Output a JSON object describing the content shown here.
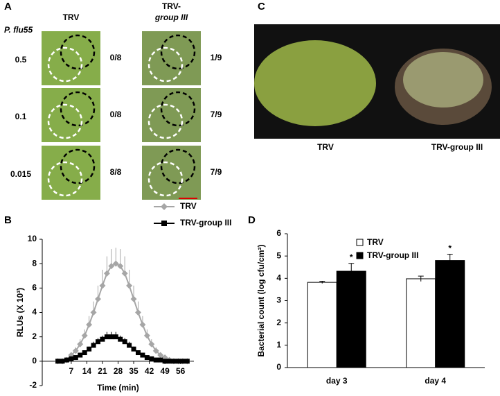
{
  "panel_a": {
    "label": "A",
    "col_headers": [
      [
        "TRV"
      ],
      [
        "TRV-",
        "group III"
      ]
    ],
    "row_header": "P. flu55",
    "rows": [
      "0.5",
      "0.1",
      "0.015"
    ],
    "scores": [
      [
        "0/8",
        "1/9"
      ],
      [
        "0/8",
        "7/9"
      ],
      [
        "8/8",
        "7/9"
      ]
    ]
  },
  "panel_c": {
    "label": "C",
    "captions": [
      "TRV",
      "TRV-group III"
    ]
  },
  "chart_data": [
    {
      "type": "line",
      "panel": "B",
      "x_label": "Time (min)",
      "y_label": "RLUs (X 10³)",
      "x": [
        1,
        3,
        5,
        7,
        9,
        11,
        13,
        15,
        17,
        19,
        21,
        23,
        25,
        27,
        29,
        31,
        33,
        35,
        37,
        39,
        41,
        43,
        45,
        47,
        49,
        51,
        53,
        55,
        57,
        59
      ],
      "series": [
        {
          "name": "TRV",
          "color": "#a6a6a6",
          "marker": "diamond",
          "values": [
            0,
            0,
            0.1,
            0.5,
            0.85,
            1.4,
            2.1,
            3.0,
            4.0,
            5.1,
            6.2,
            7.2,
            7.8,
            8,
            7.8,
            7.2,
            6.2,
            5.1,
            4.0,
            3.0,
            2.1,
            1.4,
            0.85,
            0.5,
            0.3,
            0.1,
            0,
            0,
            0,
            0
          ],
          "errors": [
            0,
            0,
            0,
            0.2,
            0.3,
            0.4,
            0.5,
            0.7,
            0.9,
            1.1,
            1.3,
            1.4,
            1.4,
            1.3,
            1.4,
            1.4,
            1.3,
            1.1,
            0.9,
            0.7,
            0.5,
            0.4,
            0.3,
            0.2,
            0.1,
            0,
            0,
            0,
            0,
            0
          ]
        },
        {
          "name": "TRV-group III",
          "color": "#000000",
          "marker": "square",
          "values": [
            0,
            0,
            0.1,
            0.2,
            0.3,
            0.5,
            0.7,
            1.0,
            1.3,
            1.6,
            1.8,
            2.0,
            2.0,
            2.0,
            1.8,
            1.6,
            1.3,
            1.0,
            0.7,
            0.5,
            0.3,
            0.2,
            0.1,
            0.1,
            0,
            0,
            0,
            0,
            0,
            0
          ],
          "errors": [
            0,
            0,
            0,
            0.1,
            0.1,
            0.1,
            0.2,
            0.2,
            0.3,
            0.3,
            0.3,
            0.4,
            0.4,
            0.4,
            0.3,
            0.3,
            0.3,
            0.2,
            0.2,
            0.1,
            0.1,
            0,
            0,
            0,
            0,
            0,
            0,
            0,
            0,
            0
          ]
        }
      ],
      "xlim": [
        -6,
        62
      ],
      "xticks": [
        7,
        14,
        21,
        28,
        35,
        42,
        49,
        56
      ],
      "ylim": [
        -2,
        10
      ],
      "yticks": [
        -2,
        0,
        2,
        4,
        6,
        8,
        10
      ]
    },
    {
      "type": "bar",
      "panel": "D",
      "y_label": "Bacterial count (log cfu/cm²)",
      "categories": [
        "day 3",
        "day 4"
      ],
      "series": [
        {
          "name": "TRV",
          "color": "#ffffff",
          "values": [
            3.82,
            3.98
          ],
          "errors": [
            0.05,
            0.12
          ]
        },
        {
          "name": "TRV-group III",
          "color": "#000000",
          "values": [
            4.32,
            4.8
          ],
          "errors": [
            0.35,
            0.28
          ]
        }
      ],
      "annotations": [
        "*",
        "*"
      ],
      "ylim": [
        0,
        6
      ],
      "yticks": [
        0,
        1,
        2,
        3,
        4,
        5,
        6
      ]
    }
  ]
}
